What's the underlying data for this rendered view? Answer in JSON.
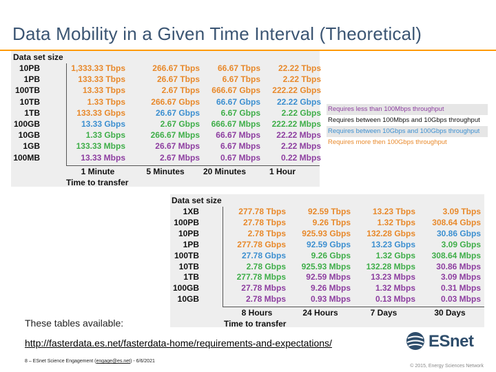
{
  "slide": {
    "title": "Data Mobility in a Given Time Interval (Theoretical)",
    "tables_available": "These tables available:",
    "link": "http://fasterdata.es.net/fasterdata-home/requirements-and-expectations/",
    "footer_prefix": "8 – ESnet Science Engagement (",
    "footer_email": "engage@es.net",
    "footer_suffix": ") - 6/6/2021",
    "copyright": "© 2015, Energy Sciences Network",
    "logo_text": "ESnet",
    "logo_icon": "globe-icon"
  },
  "legend": [
    {
      "text": "Requires less than 100Mbps throughput",
      "color": "#8d3ea0"
    },
    {
      "text": "Requires between 100Mbps and 10Gbps throughput",
      "color": "#111111"
    },
    {
      "text": "Requires between 10Gbps and 100Gbps throughput",
      "color": "#3c8fd0"
    },
    {
      "text": "Requires more then 100Gbps throughput",
      "color": "#e8892b"
    }
  ],
  "table1": {
    "header": "Data set size",
    "x_caption": "Time to transfer",
    "columns": [
      "1 Minute",
      "5 Minutes",
      "20 Minutes",
      "1 Hour"
    ],
    "rows": [
      {
        "label": "10PB",
        "cells": [
          {
            "v": "1,333.33 Tbps",
            "c": "orange"
          },
          {
            "v": "266.67 Tbps",
            "c": "orange"
          },
          {
            "v": "66.67 Tbps",
            "c": "orange"
          },
          {
            "v": "22.22 Tbps",
            "c": "orange"
          }
        ]
      },
      {
        "label": "1PB",
        "cells": [
          {
            "v": "133.33 Tbps",
            "c": "orange"
          },
          {
            "v": "26.67 Tbps",
            "c": "orange"
          },
          {
            "v": "6.67 Tbps",
            "c": "orange"
          },
          {
            "v": "2.22 Tbps",
            "c": "orange"
          }
        ]
      },
      {
        "label": "100TB",
        "cells": [
          {
            "v": "13.33 Tbps",
            "c": "orange"
          },
          {
            "v": "2.67 Tbps",
            "c": "orange"
          },
          {
            "v": "666.67 Gbps",
            "c": "orange"
          },
          {
            "v": "222.22 Gbps",
            "c": "orange"
          }
        ]
      },
      {
        "label": "10TB",
        "cells": [
          {
            "v": "1.33 Tbps",
            "c": "orange"
          },
          {
            "v": "266.67 Gbps",
            "c": "orange"
          },
          {
            "v": "66.67 Gbps",
            "c": "blue"
          },
          {
            "v": "22.22 Gbps",
            "c": "blue"
          }
        ]
      },
      {
        "label": "1TB",
        "cells": [
          {
            "v": "133.33 Gbps",
            "c": "orange"
          },
          {
            "v": "26.67 Gbps",
            "c": "blue"
          },
          {
            "v": "6.67 Gbps",
            "c": "green"
          },
          {
            "v": "2.22 Gbps",
            "c": "green"
          }
        ]
      },
      {
        "label": "100GB",
        "cells": [
          {
            "v": "13.33 Gbps",
            "c": "blue"
          },
          {
            "v": "2.67 Gbps",
            "c": "green"
          },
          {
            "v": "666.67 Mbps",
            "c": "green"
          },
          {
            "v": "222.22 Mbps",
            "c": "green"
          }
        ]
      },
      {
        "label": "10GB",
        "cells": [
          {
            "v": "1.33 Gbps",
            "c": "green"
          },
          {
            "v": "266.67 Mbps",
            "c": "green"
          },
          {
            "v": "66.67 Mbps",
            "c": "purple"
          },
          {
            "v": "22.22 Mbps",
            "c": "purple"
          }
        ]
      },
      {
        "label": "1GB",
        "cells": [
          {
            "v": "133.33 Mbps",
            "c": "green"
          },
          {
            "v": "26.67 Mbps",
            "c": "purple"
          },
          {
            "v": "6.67 Mbps",
            "c": "purple"
          },
          {
            "v": "2.22 Mbps",
            "c": "purple"
          }
        ]
      },
      {
        "label": "100MB",
        "cells": [
          {
            "v": "13.33 Mbps",
            "c": "purple"
          },
          {
            "v": "2.67 Mbps",
            "c": "purple"
          },
          {
            "v": "0.67 Mbps",
            "c": "purple"
          },
          {
            "v": "0.22 Mbps",
            "c": "purple"
          }
        ]
      }
    ]
  },
  "table2": {
    "header": "Data set size",
    "x_caption": "Time to transfer",
    "columns": [
      "8 Hours",
      "24 Hours",
      "7 Days",
      "30 Days"
    ],
    "rows": [
      {
        "label": "1XB",
        "cells": [
          {
            "v": "277.78 Tbps",
            "c": "orange"
          },
          {
            "v": "92.59 Tbps",
            "c": "orange"
          },
          {
            "v": "13.23 Tbps",
            "c": "orange"
          },
          {
            "v": "3.09 Tbps",
            "c": "orange"
          }
        ]
      },
      {
        "label": "100PB",
        "cells": [
          {
            "v": "27.78 Tbps",
            "c": "orange"
          },
          {
            "v": "9.26 Tbps",
            "c": "orange"
          },
          {
            "v": "1.32 Tbps",
            "c": "orange"
          },
          {
            "v": "308.64 Gbps",
            "c": "orange"
          }
        ]
      },
      {
        "label": "10PB",
        "cells": [
          {
            "v": "2.78 Tbps",
            "c": "orange"
          },
          {
            "v": "925.93 Gbps",
            "c": "orange"
          },
          {
            "v": "132.28 Gbps",
            "c": "orange"
          },
          {
            "v": "30.86 Gbps",
            "c": "blue"
          }
        ]
      },
      {
        "label": "1PB",
        "cells": [
          {
            "v": "277.78 Gbps",
            "c": "orange"
          },
          {
            "v": "92.59 Gbps",
            "c": "blue"
          },
          {
            "v": "13.23 Gbps",
            "c": "blue"
          },
          {
            "v": "3.09 Gbps",
            "c": "green"
          }
        ]
      },
      {
        "label": "100TB",
        "cells": [
          {
            "v": "27.78 Gbps",
            "c": "blue"
          },
          {
            "v": "9.26 Gbps",
            "c": "green"
          },
          {
            "v": "1.32 Gbps",
            "c": "green"
          },
          {
            "v": "308.64 Mbps",
            "c": "green"
          }
        ]
      },
      {
        "label": "10TB",
        "cells": [
          {
            "v": "2.78 Gbps",
            "c": "green"
          },
          {
            "v": "925.93 Mbps",
            "c": "green"
          },
          {
            "v": "132.28 Mbps",
            "c": "green"
          },
          {
            "v": "30.86 Mbps",
            "c": "purple"
          }
        ]
      },
      {
        "label": "1TB",
        "cells": [
          {
            "v": "277.78 Mbps",
            "c": "green"
          },
          {
            "v": "92.59 Mbps",
            "c": "purple"
          },
          {
            "v": "13.23 Mbps",
            "c": "purple"
          },
          {
            "v": "3.09 Mbps",
            "c": "purple"
          }
        ]
      },
      {
        "label": "100GB",
        "cells": [
          {
            "v": "27.78 Mbps",
            "c": "purple"
          },
          {
            "v": "9.26 Mbps",
            "c": "purple"
          },
          {
            "v": "1.32 Mbps",
            "c": "purple"
          },
          {
            "v": "0.31 Mbps",
            "c": "purple"
          }
        ]
      },
      {
        "label": "10GB",
        "cells": [
          {
            "v": "2.78 Mbps",
            "c": "purple"
          },
          {
            "v": "0.93 Mbps",
            "c": "purple"
          },
          {
            "v": "0.13 Mbps",
            "c": "purple"
          },
          {
            "v": "0.03 Mbps",
            "c": "purple"
          }
        ]
      }
    ]
  }
}
